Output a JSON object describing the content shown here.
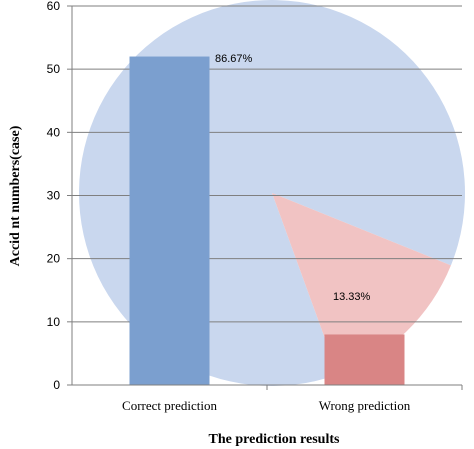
{
  "chart_data": [
    {
      "type": "bar",
      "categories": [
        "Correct prediction",
        "Wrong prediction"
      ],
      "values": [
        52,
        8
      ],
      "xlabel": "The prediction results",
      "ylabel": "Accid nt numbers(case)",
      "ylim": [
        0,
        60
      ],
      "yticks": [
        "0",
        "10",
        "20",
        "30",
        "40",
        "50",
        "60"
      ],
      "grid": true,
      "colors": [
        "#7b9fcf",
        "#d98585"
      ]
    },
    {
      "type": "pie",
      "labels": [
        "86.67%",
        "13.33%"
      ],
      "values": [
        86.67,
        13.33
      ],
      "colors": [
        "#c9d7ee",
        "#f1c3c3"
      ]
    }
  ]
}
